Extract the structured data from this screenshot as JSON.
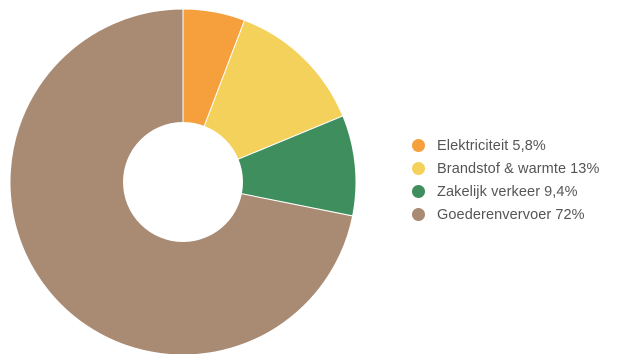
{
  "chart_data": {
    "type": "pie",
    "variant": "donut",
    "categories": [
      "Elektriciteit",
      "Brandstof & warmte",
      "Zakelijk verkeer",
      "Goederenvervoer"
    ],
    "values": [
      5.8,
      13,
      9.4,
      72
    ],
    "value_labels": [
      "5,8%",
      "13%",
      "9,4%",
      "72%"
    ],
    "unit": "%",
    "colors": [
      "#f5a03c",
      "#f3d15a",
      "#3f8f5e",
      "#a98a73"
    ],
    "start_angle_deg": 0,
    "direction": "clockwise",
    "legend_position": "right",
    "title": ""
  }
}
